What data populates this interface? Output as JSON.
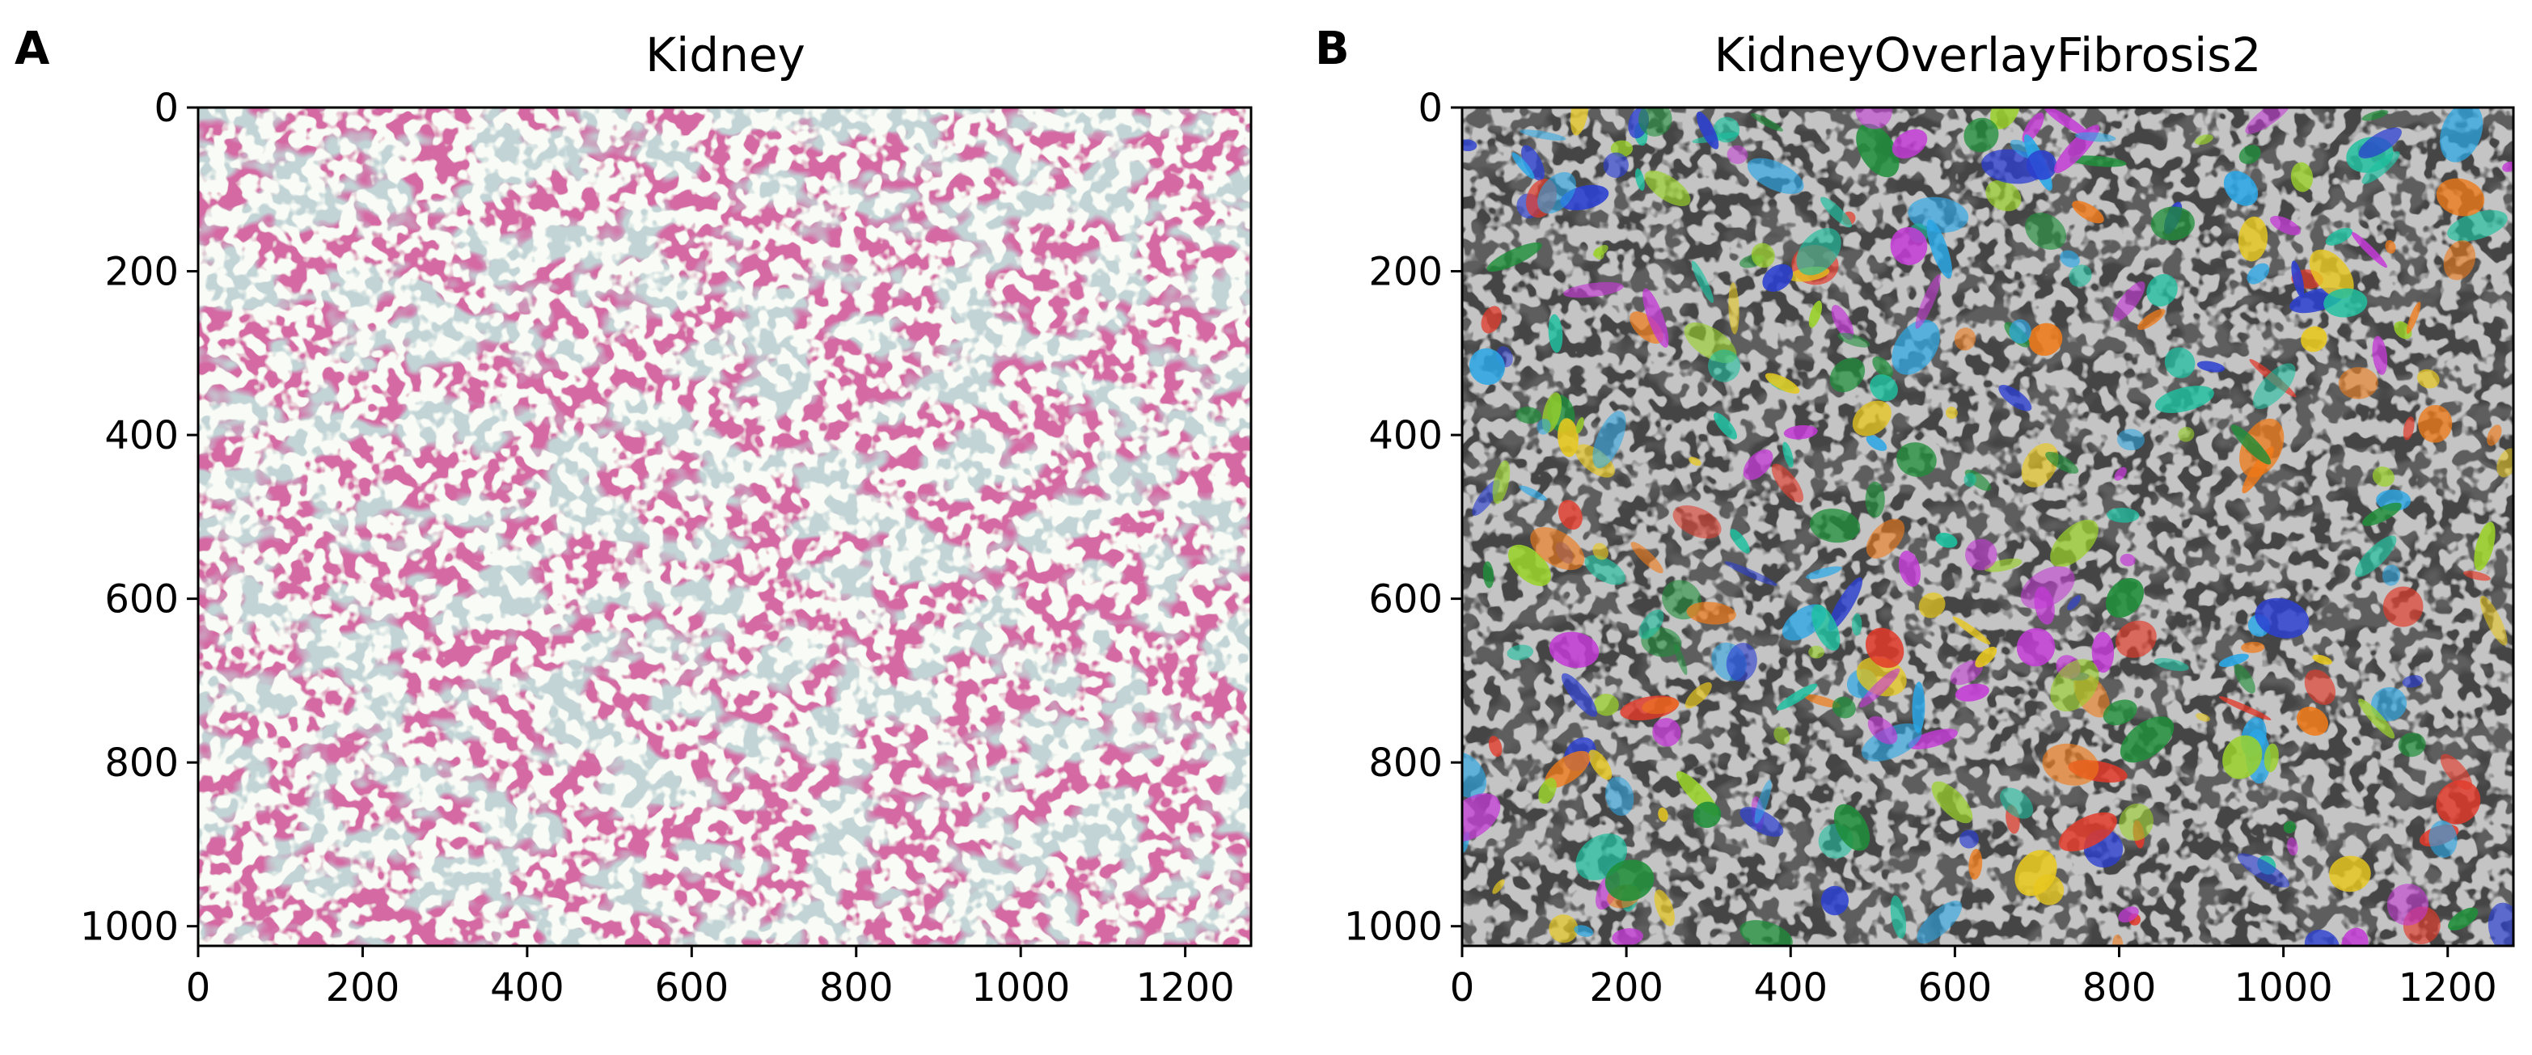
{
  "panels": [
    {
      "letter": "A",
      "title": "Kidney",
      "xticks": [
        "0",
        "200",
        "400",
        "600",
        "800",
        "1000",
        "1200"
      ],
      "yticks": [
        "0",
        "200",
        "400",
        "600",
        "800",
        "1000"
      ],
      "image_desc_colors": {
        "bg": "#d9e4dc",
        "stain": "#a8235f",
        "blue": "#8fb0c8"
      }
    },
    {
      "letter": "B",
      "title": "KidneyOverlayFibrosis2",
      "xticks": [
        "0",
        "200",
        "400",
        "600",
        "800",
        "1000",
        "1200"
      ],
      "yticks": [
        "0",
        "200",
        "400",
        "600",
        "800",
        "1000"
      ],
      "image_desc_colors": {
        "bg": "#5a5a5a",
        "dark": "#111111"
      }
    }
  ],
  "overlay_palette": [
    "#e23a2a",
    "#2b3fd1",
    "#1ec0a0",
    "#e8c81e",
    "#f07a18",
    "#2aa7e6",
    "#9ad12a",
    "#c43ad6",
    "#1f8f3a"
  ]
}
